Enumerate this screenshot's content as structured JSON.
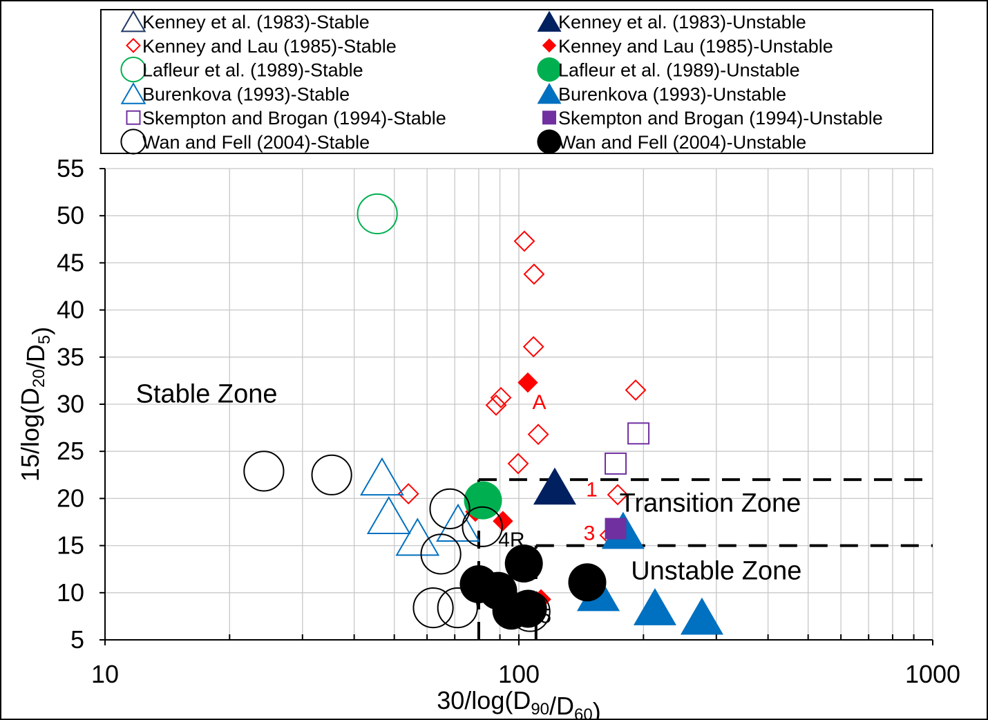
{
  "chart_data": {
    "type": "scatter",
    "xlabel": "30/log(D90/D60)",
    "ylabel": "15/log(D20/D5)",
    "x_scale": "log",
    "xlim": [
      10,
      1000
    ],
    "ylim": [
      5,
      55
    ],
    "x_ticks": [
      "10",
      "100",
      "1000"
    ],
    "y_ticks": [
      "5",
      "10",
      "15",
      "20",
      "25",
      "30",
      "35",
      "40",
      "45",
      "50",
      "55"
    ],
    "grid": true,
    "legend_placement": "top",
    "series": [
      {
        "name": "Kenney et al. (1983)-Stable",
        "marker": "triangle",
        "filled": false,
        "color": "#1f3864",
        "points": []
      },
      {
        "name": "Kenney et al. (1983)-Unstable",
        "marker": "triangle",
        "filled": true,
        "color": "#002060",
        "points": [
          [
            122.1,
            21.3
          ]
        ]
      },
      {
        "name": "Kenney and Lau (1985)-Stable",
        "marker": "diamond",
        "filled": false,
        "color": "#ff0000",
        "points": [
          [
            103.1,
            47.3
          ],
          [
            108.8,
            43.8
          ],
          [
            108.5,
            36.1
          ],
          [
            90.5,
            30.7
          ],
          [
            88.1,
            29.9
          ],
          [
            111.4,
            26.8
          ],
          [
            99.6,
            23.7
          ],
          [
            191.5,
            31.5
          ],
          [
            54.1,
            20.5
          ],
          [
            173.3,
            20.4
          ],
          [
            166.1,
            16.1
          ]
        ]
      },
      {
        "name": "Kenney and Lau (1985)-Unstable",
        "marker": "diamond",
        "filled": true,
        "color": "#ff0000",
        "points": [
          [
            105.1,
            32.3
          ],
          [
            78.5,
            18.6
          ],
          [
            91.5,
            17.6
          ],
          [
            113.1,
            9.3
          ]
        ]
      },
      {
        "name": "Lafleur et al. (1989)-Stable",
        "marker": "circle",
        "filled": false,
        "color": "#00b050",
        "points": [
          [
            45.5,
            50.2
          ]
        ]
      },
      {
        "name": "Lafleur et al. (1989)-Unstable",
        "marker": "circle",
        "filled": true,
        "color": "#00b050",
        "points": [
          [
            81.9,
            19.8
          ]
        ]
      },
      {
        "name": "Burenkova (1993)-Stable",
        "marker": "triangle",
        "filled": false,
        "color": "#0070c0",
        "points": [
          [
            46.7,
            22.3
          ],
          [
            48.5,
            18.2
          ],
          [
            56.9,
            15.9
          ],
          [
            71.3,
            17.4
          ]
        ]
      },
      {
        "name": "Burenkova (1993)-Unstable",
        "marker": "triangle",
        "filled": true,
        "color": "#0070c0",
        "points": [
          [
            178.6,
            16.6
          ],
          [
            155.6,
            10.0
          ],
          [
            213.2,
            8.5
          ],
          [
            276.9,
            7.5
          ]
        ]
      },
      {
        "name": "Skempton and Brogan (1994)-Stable",
        "marker": "square",
        "filled": false,
        "color": "#7030a0",
        "points": [
          [
            194.5,
            26.9
          ],
          [
            171.3,
            23.7
          ]
        ]
      },
      {
        "name": "Skempton and Brogan (1994)-Unstable",
        "marker": "square",
        "filled": true,
        "color": "#7030a0",
        "points": [
          [
            171.3,
            16.8
          ]
        ]
      },
      {
        "name": "Wan and Fell (2004)-Stable",
        "marker": "circle",
        "filled": false,
        "color": "#000000",
        "points": [
          [
            24.2,
            22.9
          ],
          [
            35.3,
            22.5
          ],
          [
            68.1,
            18.9
          ],
          [
            81.6,
            17.0
          ],
          [
            64.8,
            14.1
          ],
          [
            62.1,
            8.4
          ],
          [
            71.1,
            8.4
          ],
          [
            106.4,
            8.0
          ]
        ]
      },
      {
        "name": "Wan and Fell (2004)-Unstable",
        "marker": "circle",
        "filled": true,
        "color": "#000000",
        "points": [
          [
            102.8,
            13.1
          ],
          [
            80.0,
            10.9
          ],
          [
            89.1,
            10.2
          ],
          [
            95.9,
            8.1
          ],
          [
            105.2,
            8.3
          ],
          [
            146.3,
            11.1
          ]
        ]
      }
    ],
    "legend_order": [
      0,
      1,
      2,
      3,
      4,
      5,
      6,
      7,
      8,
      9,
      10,
      11
    ],
    "boundaries": [
      {
        "points": [
          [
            80,
            5
          ],
          [
            80,
            22
          ]
        ]
      },
      {
        "points": [
          [
            80,
            22
          ],
          [
            1000,
            22
          ]
        ]
      },
      {
        "points": [
          [
            110,
            5
          ],
          [
            110,
            15
          ]
        ]
      },
      {
        "points": [
          [
            110,
            15
          ],
          [
            1000,
            15
          ]
        ]
      }
    ],
    "annotations": [
      {
        "text": "Stable Zone",
        "x": 17.6,
        "y": 30.2,
        "color": "#000000",
        "size": "large"
      },
      {
        "text": "Transition Zone",
        "x": 290,
        "y": 18.6,
        "color": "#000000",
        "size": "large"
      },
      {
        "text": "Unstable Zone",
        "x": 300,
        "y": 11.4,
        "color": "#000000",
        "size": "large"
      },
      {
        "text": "A",
        "x": 112,
        "y": 29.5,
        "color": "#ff0000",
        "size": "small"
      },
      {
        "text": "1",
        "x": 150,
        "y": 20.2,
        "color": "#ff0000",
        "size": "small"
      },
      {
        "text": "3",
        "x": 148,
        "y": 15.6,
        "color": "#ff0000",
        "size": "small"
      },
      {
        "text": "4R",
        "x": 96,
        "y": 14.9,
        "color": "#000000",
        "size": "small"
      },
      {
        "text": "5",
        "x": 116,
        "y": 6.8,
        "color": "#000000",
        "size": "small"
      }
    ]
  }
}
